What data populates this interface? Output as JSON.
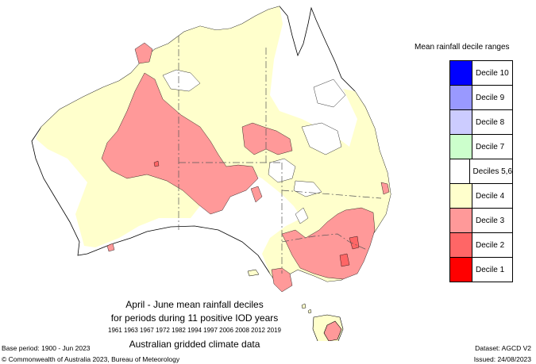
{
  "legend": {
    "title": "Mean rainfall decile ranges",
    "items": [
      {
        "label": "Decile 10",
        "color": "#0000ff"
      },
      {
        "label": "Decile 9",
        "color": "#9999ff"
      },
      {
        "label": "Decile 8",
        "color": "#ccccff"
      },
      {
        "label": "Decile 7",
        "color": "#ccffcc"
      },
      {
        "label": "Deciles 5,6",
        "color": "#ffffff"
      },
      {
        "label": "Decile 4",
        "color": "#ffffcc"
      },
      {
        "label": "Decile 3",
        "color": "#ff9999"
      },
      {
        "label": "Decile 2",
        "color": "#ff6666"
      },
      {
        "label": "Decile 1",
        "color": "#ff0000"
      }
    ]
  },
  "caption": {
    "line1": "April - June mean rainfall deciles",
    "line2": "for periods during 11 positive IOD years",
    "line3": "1961 1963 1967 1972 1982 1994 1997 2006 2008 2012 2019",
    "line4": "Australian gridded climate data"
  },
  "footer": {
    "base_period": "Base period: 1900 - Jun 2023",
    "copyright": "© Commonwealth of Australia 2023, Bureau of Meteorology",
    "dataset": "Dataset: AGCD V2",
    "issued": "Issued: 24/08/2023"
  },
  "colors": {
    "decile4": "#ffffcc",
    "decile3": "#ff9999",
    "decile2": "#ff6666",
    "outline": "#000000",
    "border": "#555555"
  }
}
